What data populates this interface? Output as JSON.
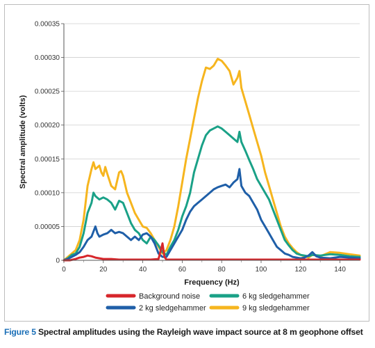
{
  "caption": {
    "label": "Figure 5",
    "text": " Spectral amplitudes using the Rayleigh wave impact source at 8 m geophone offset"
  },
  "chart_data": {
    "type": "line",
    "xlabel": "Frequency (Hz)",
    "ylabel": "Spectral amplitude (volts)",
    "xlim": [
      0,
      150
    ],
    "ylim": [
      0,
      0.00035
    ],
    "xticks": [
      "0",
      "20",
      "40",
      "60",
      "80",
      "100",
      "120",
      "140"
    ],
    "xtick_values": [
      0,
      20,
      40,
      60,
      80,
      100,
      120,
      140
    ],
    "yticks": [
      "0",
      "0.00005",
      "0.00010",
      "0.00015",
      "0.00020",
      "0.00025",
      "0.00030",
      "0.00035"
    ],
    "ytick_values": [
      0,
      5e-05,
      0.0001,
      0.00015,
      0.0002,
      0.00025,
      0.0003,
      0.00035
    ],
    "grid": "horizontal",
    "legend_position": "bottom",
    "series": [
      {
        "name": "Background noise",
        "color": "#d7262b",
        "x": [
          0,
          3,
          6,
          8,
          10,
          12,
          14,
          16,
          18,
          20,
          24,
          28,
          32,
          36,
          40,
          44,
          48,
          50,
          51,
          52,
          56,
          60,
          80,
          100,
          120,
          140,
          150
        ],
        "y": [
          0,
          0,
          2e-06,
          4e-06,
          5e-06,
          7e-06,
          6e-06,
          4e-06,
          3e-06,
          2e-06,
          2e-06,
          1e-06,
          1e-06,
          1e-06,
          1e-06,
          1e-06,
          2e-06,
          2.5e-05,
          5e-06,
          1e-06,
          1e-06,
          1e-06,
          1e-06,
          1e-06,
          1e-06,
          1e-06,
          1e-06
        ]
      },
      {
        "name": "2 kg sledgehammer",
        "color": "#1f5fa8",
        "x": [
          0,
          2,
          4,
          6,
          8,
          10,
          12,
          14,
          16,
          17,
          18,
          20,
          22,
          24,
          26,
          28,
          30,
          32,
          34,
          36,
          38,
          40,
          42,
          44,
          46,
          48,
          50,
          52,
          54,
          56,
          58,
          60,
          62,
          64,
          66,
          68,
          70,
          72,
          74,
          76,
          78,
          80,
          82,
          84,
          86,
          88,
          89,
          90,
          91,
          92,
          94,
          96,
          98,
          100,
          102,
          104,
          106,
          108,
          110,
          112,
          114,
          116,
          118,
          120,
          122,
          124,
          126,
          128,
          130,
          135,
          140,
          145,
          150
        ],
        "y": [
          0,
          2e-06,
          5e-06,
          8e-06,
          1.2e-05,
          2e-05,
          3e-05,
          3.5e-05,
          5e-05,
          4e-05,
          3.5e-05,
          3.8e-05,
          4e-05,
          4.5e-05,
          4e-05,
          4.2e-05,
          4e-05,
          3.5e-05,
          3e-05,
          3.5e-05,
          3e-05,
          3.8e-05,
          4e-05,
          3.5e-05,
          2.5e-05,
          1e-05,
          5e-06,
          5e-06,
          1.5e-05,
          2.5e-05,
          3.5e-05,
          4.5e-05,
          6e-05,
          7.2e-05,
          8e-05,
          8.5e-05,
          9e-05,
          9.5e-05,
          0.0001,
          0.000105,
          0.000108,
          0.00011,
          0.000112,
          0.000108,
          0.000115,
          0.00012,
          0.000135,
          0.00011,
          0.000105,
          0.0001,
          9.5e-05,
          8.5e-05,
          7.5e-05,
          6e-05,
          5e-05,
          4e-05,
          3e-05,
          2e-05,
          1.5e-05,
          1e-05,
          8e-06,
          5e-06,
          4e-06,
          3e-06,
          4e-06,
          7e-06,
          1.2e-05,
          6e-06,
          4e-06,
          3e-06,
          5e-06,
          4e-06,
          3e-06
        ]
      },
      {
        "name": "6 kg sledgehammer",
        "color": "#1aa187",
        "x": [
          0,
          2,
          4,
          6,
          8,
          10,
          12,
          14,
          15,
          16,
          18,
          20,
          22,
          24,
          26,
          28,
          30,
          32,
          34,
          36,
          38,
          40,
          42,
          44,
          46,
          48,
          50,
          52,
          54,
          56,
          58,
          60,
          62,
          64,
          66,
          68,
          70,
          72,
          74,
          76,
          78,
          80,
          82,
          84,
          86,
          88,
          89,
          90,
          92,
          94,
          96,
          98,
          100,
          102,
          104,
          106,
          108,
          110,
          112,
          114,
          116,
          118,
          120,
          122,
          124,
          126,
          130,
          135,
          140,
          145,
          150
        ],
        "y": [
          0,
          3e-06,
          8e-06,
          1e-05,
          2e-05,
          4e-05,
          7e-05,
          8.5e-05,
          0.0001,
          9.5e-05,
          9e-05,
          9.3e-05,
          9e-05,
          8.5e-05,
          7.5e-05,
          8.8e-05,
          8.5e-05,
          7e-05,
          5.5e-05,
          4.5e-05,
          4e-05,
          3e-05,
          2.5e-05,
          3.5e-05,
          3e-05,
          2.2e-05,
          1.2e-05,
          8e-06,
          2e-05,
          3e-05,
          4.5e-05,
          6.5e-05,
          8e-05,
          0.0001,
          0.00013,
          0.00015,
          0.00017,
          0.000185,
          0.000192,
          0.000195,
          0.000198,
          0.000195,
          0.00019,
          0.000185,
          0.00018,
          0.000175,
          0.00019,
          0.000175,
          0.000162,
          0.000148,
          0.000135,
          0.00012,
          0.00011,
          0.0001,
          9e-05,
          7.5e-05,
          6e-05,
          4.5e-05,
          3e-05,
          2.2e-05,
          1.5e-05,
          1e-05,
          8e-06,
          7e-06,
          6e-06,
          8e-06,
          7e-06,
          9e-06,
          8e-06,
          6e-06,
          5e-06
        ]
      },
      {
        "name": "9 kg sledgehammer",
        "color": "#f6b51e",
        "x": [
          0,
          2,
          4,
          6,
          8,
          10,
          12,
          14,
          15,
          16,
          18,
          19,
          20,
          21,
          22,
          24,
          26,
          28,
          29,
          30,
          32,
          34,
          36,
          38,
          40,
          42,
          44,
          46,
          48,
          50,
          52,
          54,
          56,
          58,
          60,
          62,
          64,
          66,
          68,
          70,
          72,
          74,
          76,
          78,
          80,
          82,
          84,
          86,
          88,
          89,
          90,
          92,
          94,
          96,
          98,
          100,
          102,
          104,
          106,
          108,
          110,
          112,
          114,
          116,
          118,
          120,
          122,
          124,
          126,
          130,
          135,
          140,
          145,
          150
        ],
        "y": [
          0,
          5e-06,
          1e-05,
          1.5e-05,
          3e-05,
          6e-05,
          0.00011,
          0.000135,
          0.000145,
          0.000135,
          0.00014,
          0.00013,
          0.000125,
          0.000138,
          0.000128,
          0.00011,
          0.000105,
          0.00013,
          0.000132,
          0.000125,
          0.0001,
          8.5e-05,
          7e-05,
          6e-05,
          5e-05,
          4.8e-05,
          4e-05,
          3e-05,
          2e-05,
          1e-05,
          1.5e-05,
          3e-05,
          5e-05,
          8e-05,
          0.000115,
          0.00015,
          0.00018,
          0.00021,
          0.00024,
          0.000265,
          0.000285,
          0.000283,
          0.000288,
          0.000298,
          0.000295,
          0.000288,
          0.00028,
          0.00026,
          0.00027,
          0.00028,
          0.000255,
          0.000235,
          0.000215,
          0.000195,
          0.000175,
          0.000155,
          0.00013,
          0.00011,
          9e-05,
          7e-05,
          5e-05,
          3.5e-05,
          2.5e-05,
          1.8e-05,
          1.2e-05,
          8e-06,
          6e-06,
          4e-06,
          8e-06,
          6e-06,
          1.2e-05,
          1.1e-05,
          9e-06,
          7e-06
        ]
      }
    ]
  }
}
